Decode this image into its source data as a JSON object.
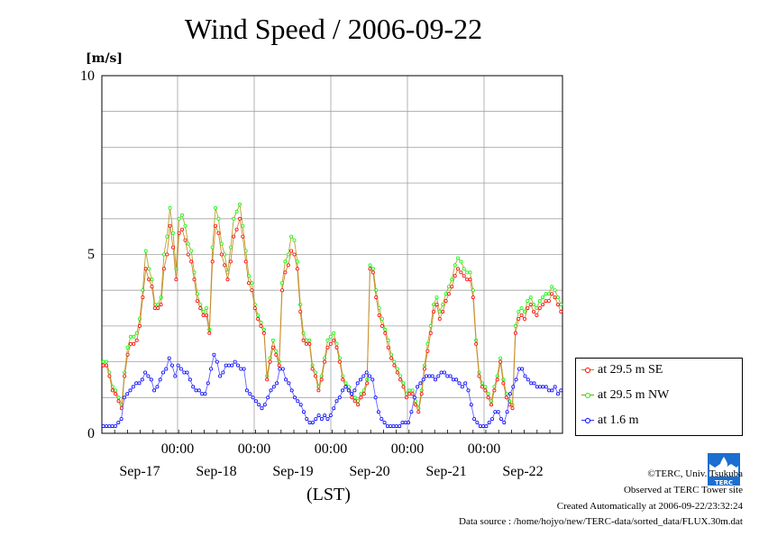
{
  "chart_data": {
    "type": "line",
    "title": "Wind Speed / 2006-09-22",
    "ylabel": "[m/s]",
    "xlabel": "(LST)",
    "ylim": [
      0,
      10
    ],
    "yticks": [
      "0",
      "5",
      "10"
    ],
    "x_time_labels": [
      "00:00",
      "00:00",
      "00:00",
      "00:00",
      "00:00"
    ],
    "x_date_labels": [
      "Sep-17",
      "Sep-18",
      "Sep-19",
      "Sep-20",
      "Sep-21",
      "Sep-22"
    ],
    "grid": true,
    "legend_position": "bottom-right",
    "series": [
      {
        "name": "at 29.5 m SE",
        "color": "#ff0000",
        "values": [
          1.9,
          1.9,
          1.6,
          1.2,
          1.1,
          0.9,
          0.7,
          1.6,
          2.2,
          2.5,
          2.5,
          2.6,
          3.0,
          3.8,
          4.6,
          4.3,
          4.1,
          3.5,
          3.5,
          3.6,
          4.6,
          5.0,
          5.8,
          5.2,
          4.3,
          5.6,
          5.7,
          5.4,
          5.0,
          4.8,
          4.3,
          3.7,
          3.5,
          3.3,
          3.3,
          2.8,
          4.8,
          5.8,
          5.6,
          5.0,
          4.7,
          4.3,
          4.8,
          5.5,
          5.7,
          6.0,
          5.5,
          4.8,
          4.2,
          4.0,
          3.5,
          3.2,
          3.0,
          2.8,
          1.5,
          2.0,
          2.4,
          2.2,
          1.9,
          4.0,
          4.5,
          4.7,
          5.1,
          5.0,
          4.6,
          3.4,
          2.6,
          2.5,
          2.5,
          1.8,
          1.6,
          1.2,
          1.5,
          2.0,
          2.4,
          2.5,
          2.6,
          2.4,
          2.0,
          1.5,
          1.3,
          1.2,
          1.0,
          0.9,
          0.8,
          1.0,
          1.1,
          1.4,
          4.6,
          4.5,
          3.8,
          3.3,
          3.0,
          2.8,
          2.4,
          2.1,
          1.9,
          1.7,
          1.5,
          1.3,
          1.0,
          1.1,
          1.1,
          0.8,
          0.6,
          1.1,
          1.8,
          2.3,
          2.8,
          3.4,
          3.6,
          3.2,
          3.4,
          3.7,
          3.9,
          4.1,
          4.4,
          4.6,
          4.5,
          4.4,
          4.3,
          4.3,
          3.8,
          2.5,
          1.6,
          1.3,
          1.2,
          1.0,
          0.8,
          1.2,
          1.5,
          2.0,
          1.4,
          1.0,
          0.8,
          0.7,
          2.8,
          3.2,
          3.3,
          3.2,
          3.5,
          3.6,
          3.4,
          3.3,
          3.5,
          3.6,
          3.7,
          3.7,
          3.9,
          3.8,
          3.6,
          3.4
        ]
      },
      {
        "name": "at 29.5 m NW",
        "color": "#00ff00",
        "values": [
          2.0,
          2.0,
          1.7,
          1.3,
          1.2,
          1.0,
          0.8,
          1.7,
          2.4,
          2.7,
          2.7,
          2.8,
          3.2,
          4.0,
          5.1,
          4.6,
          4.3,
          3.6,
          3.6,
          3.8,
          5.0,
          5.5,
          6.3,
          5.6,
          4.6,
          6.0,
          6.1,
          5.8,
          5.3,
          5.1,
          4.5,
          3.9,
          3.6,
          3.4,
          3.5,
          2.9,
          5.2,
          6.3,
          6.0,
          5.3,
          5.0,
          4.5,
          5.2,
          6.0,
          6.2,
          6.4,
          5.8,
          5.1,
          4.4,
          4.2,
          3.6,
          3.3,
          3.1,
          2.9,
          1.6,
          2.1,
          2.6,
          2.3,
          2.0,
          4.2,
          4.8,
          5.0,
          5.5,
          5.4,
          4.8,
          3.6,
          2.8,
          2.6,
          2.6,
          1.9,
          1.7,
          1.3,
          1.6,
          2.1,
          2.6,
          2.7,
          2.8,
          2.5,
          2.1,
          1.6,
          1.4,
          1.3,
          1.1,
          1.0,
          0.9,
          1.1,
          1.2,
          1.5,
          4.7,
          4.6,
          4.0,
          3.5,
          3.2,
          2.9,
          2.6,
          2.2,
          2.0,
          1.8,
          1.6,
          1.4,
          1.1,
          1.2,
          1.2,
          0.9,
          0.7,
          1.2,
          1.9,
          2.5,
          3.0,
          3.6,
          3.8,
          3.4,
          3.6,
          3.9,
          4.1,
          4.3,
          4.7,
          4.9,
          4.8,
          4.6,
          4.5,
          4.5,
          4.0,
          2.6,
          1.7,
          1.4,
          1.3,
          1.1,
          0.9,
          1.3,
          1.6,
          2.1,
          1.5,
          1.1,
          0.9,
          0.8,
          3.0,
          3.4,
          3.5,
          3.4,
          3.7,
          3.8,
          3.6,
          3.5,
          3.7,
          3.8,
          3.9,
          3.9,
          4.1,
          4.0,
          3.8,
          3.6
        ]
      },
      {
        "name": "at 1.6 m",
        "color": "#0000ff",
        "values": [
          0.2,
          0.2,
          0.2,
          0.2,
          0.2,
          0.3,
          0.4,
          1.0,
          1.1,
          1.2,
          1.3,
          1.4,
          1.4,
          1.5,
          1.7,
          1.6,
          1.5,
          1.2,
          1.3,
          1.5,
          1.7,
          1.8,
          2.1,
          1.9,
          1.6,
          1.9,
          1.8,
          1.7,
          1.7,
          1.5,
          1.3,
          1.2,
          1.2,
          1.1,
          1.1,
          1.4,
          1.8,
          2.2,
          2.0,
          1.6,
          1.7,
          1.9,
          1.9,
          1.9,
          2.0,
          1.9,
          1.8,
          1.8,
          1.2,
          1.1,
          1.0,
          0.9,
          0.8,
          0.7,
          0.8,
          1.0,
          1.2,
          1.3,
          1.4,
          1.8,
          1.8,
          1.5,
          1.4,
          1.2,
          1.0,
          0.9,
          0.8,
          0.6,
          0.4,
          0.3,
          0.3,
          0.4,
          0.5,
          0.4,
          0.5,
          0.4,
          0.5,
          0.7,
          0.9,
          1.0,
          1.2,
          1.3,
          1.2,
          1.1,
          1.2,
          1.4,
          1.5,
          1.6,
          1.7,
          1.6,
          1.5,
          1.0,
          0.6,
          0.4,
          0.3,
          0.2,
          0.2,
          0.2,
          0.2,
          0.2,
          0.3,
          0.3,
          0.3,
          0.6,
          1.0,
          1.3,
          1.4,
          1.5,
          1.6,
          1.6,
          1.6,
          1.5,
          1.6,
          1.7,
          1.7,
          1.6,
          1.6,
          1.5,
          1.5,
          1.4,
          1.3,
          1.4,
          1.2,
          0.8,
          0.4,
          0.3,
          0.2,
          0.2,
          0.2,
          0.3,
          0.4,
          0.6,
          0.6,
          0.4,
          0.3,
          0.6,
          1.1,
          1.3,
          1.5,
          1.8,
          1.8,
          1.6,
          1.5,
          1.4,
          1.4,
          1.3,
          1.3,
          1.3,
          1.3,
          1.2,
          1.2,
          1.3,
          1.1,
          1.2
        ]
      }
    ]
  },
  "credits": {
    "copyright": "©TERC, Univ. Tsukuba",
    "observed": "Observed at TERC Tower site",
    "created": "Created Automatically at 2006-09-22/23:32:24",
    "source": "Data source : /home/hojyo/new/TERC-data/sorted_data/FLUX.30m.dat"
  },
  "logo": {
    "text": "TERC",
    "color": "#1a6fd0"
  }
}
